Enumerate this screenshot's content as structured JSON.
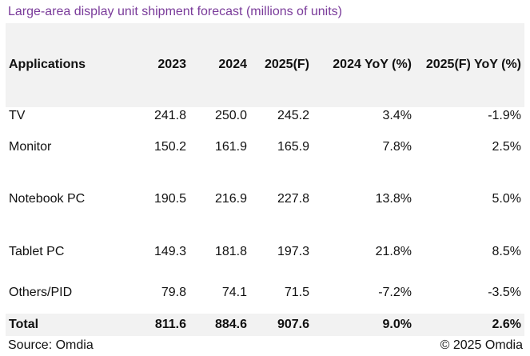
{
  "title": "Large-area display unit shipment forecast (millions of units)",
  "table": {
    "headers": [
      "Applications",
      "2023",
      "2024",
      "2025(F)",
      "2024 YoY (%)",
      "2025(F) YoY (%)"
    ],
    "rows": [
      [
        "TV",
        "241.8",
        "250.0",
        "245.2",
        "3.4%",
        "-1.9%"
      ],
      [
        "Monitor",
        "150.2",
        "161.9",
        "165.9",
        "7.8%",
        "2.5%"
      ],
      [
        "Notebook PC",
        "190.5",
        "216.9",
        "227.8",
        "13.8%",
        "5.0%"
      ],
      [
        "Tablet PC",
        "149.3",
        "181.8",
        "197.3",
        "21.8%",
        "8.5%"
      ],
      [
        "Others/PID",
        "79.8",
        "74.1",
        "71.5",
        "-7.2%",
        "-3.5%"
      ]
    ],
    "total": [
      "Total",
      "811.6",
      "884.6",
      "907.6",
      "9.0%",
      "2.6%"
    ]
  },
  "footer": {
    "source": "Source: Omdia",
    "copyright": "© 2025 Omdia"
  }
}
